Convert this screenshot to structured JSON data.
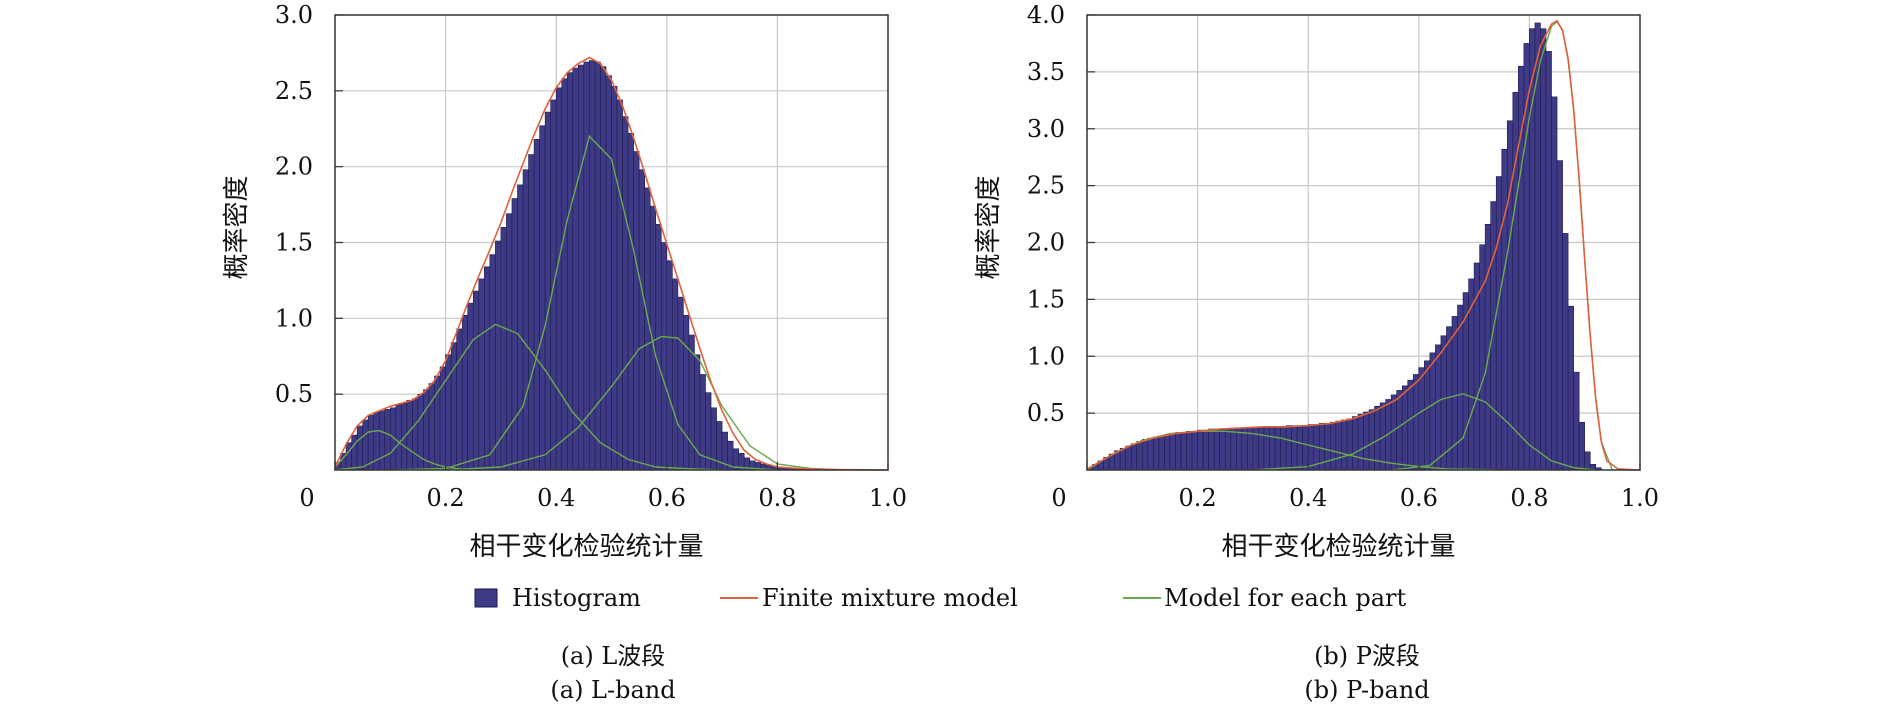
{
  "colors": {
    "histogram_fill": "#3f3a85",
    "histogram_edge": "#1e1b4d",
    "mixture_line": "#e0623a",
    "component_line": "#6aa84f",
    "grid": "#c8c8c8",
    "axis": "#333333"
  },
  "legend": {
    "histogram": "Histogram",
    "mixture": "Finite mixture model",
    "components": "Model for each part"
  },
  "chart_data": [
    {
      "type": "histogram",
      "caption_cn": "(a) L波段",
      "caption_en": "(a) L-band",
      "xlabel": "相干变化检验统计量",
      "ylabel": "概率密度",
      "xlim": [
        0,
        1.0
      ],
      "ylim": [
        0,
        3.0
      ],
      "xticks": [
        {
          "v": 0,
          "label": "0"
        },
        {
          "v": 0.2,
          "label": "0.2"
        },
        {
          "v": 0.4,
          "label": "0.4"
        },
        {
          "v": 0.6,
          "label": "0.6"
        },
        {
          "v": 0.8,
          "label": "0.8"
        },
        {
          "v": 1.0,
          "label": "1.0"
        }
      ],
      "yticks": [
        {
          "v": 0.5,
          "label": "0.5"
        },
        {
          "v": 1.0,
          "label": "1.0"
        },
        {
          "v": 1.5,
          "label": "1.5"
        },
        {
          "v": 2.0,
          "label": "2.0"
        },
        {
          "v": 2.5,
          "label": "2.5"
        },
        {
          "v": 3.0,
          "label": "3.0"
        }
      ],
      "bin_width": 0.01,
      "bins": [
        0.0,
        0.01,
        0.02,
        0.03,
        0.04,
        0.05,
        0.06,
        0.07,
        0.08,
        0.09,
        0.1,
        0.11,
        0.12,
        0.13,
        0.14,
        0.15,
        0.16,
        0.17,
        0.18,
        0.19,
        0.2,
        0.21,
        0.22,
        0.23,
        0.24,
        0.25,
        0.26,
        0.27,
        0.28,
        0.29,
        0.3,
        0.31,
        0.32,
        0.33,
        0.34,
        0.35,
        0.36,
        0.37,
        0.38,
        0.39,
        0.4,
        0.41,
        0.42,
        0.43,
        0.44,
        0.45,
        0.46,
        0.47,
        0.48,
        0.49,
        0.5,
        0.51,
        0.52,
        0.53,
        0.54,
        0.55,
        0.56,
        0.57,
        0.58,
        0.59,
        0.6,
        0.61,
        0.62,
        0.63,
        0.64,
        0.65,
        0.66,
        0.67,
        0.68,
        0.69,
        0.7,
        0.71,
        0.72,
        0.73,
        0.74,
        0.75,
        0.76,
        0.77,
        0.78,
        0.79,
        0.8,
        0.81,
        0.82,
        0.83,
        0.84,
        0.85,
        0.86,
        0.87,
        0.88,
        0.89,
        0.9,
        0.91,
        0.92,
        0.93,
        0.94,
        0.95,
        0.96,
        0.97,
        0.98,
        0.99
      ],
      "histogram": [
        0.05,
        0.11,
        0.18,
        0.23,
        0.29,
        0.33,
        0.36,
        0.38,
        0.39,
        0.4,
        0.41,
        0.43,
        0.44,
        0.46,
        0.47,
        0.5,
        0.53,
        0.57,
        0.62,
        0.68,
        0.76,
        0.84,
        0.93,
        1.02,
        1.1,
        1.18,
        1.26,
        1.34,
        1.42,
        1.51,
        1.6,
        1.69,
        1.79,
        1.88,
        1.98,
        2.08,
        2.18,
        2.27,
        2.36,
        2.44,
        2.52,
        2.58,
        2.62,
        2.65,
        2.67,
        2.69,
        2.7,
        2.69,
        2.66,
        2.6,
        2.53,
        2.44,
        2.33,
        2.22,
        2.1,
        1.98,
        1.86,
        1.74,
        1.62,
        1.5,
        1.38,
        1.26,
        1.14,
        1.02,
        0.89,
        0.76,
        0.63,
        0.51,
        0.41,
        0.32,
        0.25,
        0.19,
        0.14,
        0.11,
        0.08,
        0.06,
        0.05,
        0.04,
        0.03,
        0.025,
        0.02,
        0.015,
        0.012,
        0.01,
        0.01,
        0.01,
        0.008,
        0.006,
        0.005,
        0.004,
        0.003,
        0.003,
        0.002,
        0.002,
        0.002,
        0.002,
        0.001,
        0.001,
        0.001,
        0.001
      ],
      "mixture_curve": {
        "x": [
          0.0,
          0.02,
          0.04,
          0.06,
          0.08,
          0.1,
          0.12,
          0.14,
          0.16,
          0.18,
          0.2,
          0.22,
          0.24,
          0.26,
          0.28,
          0.3,
          0.32,
          0.34,
          0.36,
          0.38,
          0.4,
          0.42,
          0.44,
          0.46,
          0.48,
          0.5,
          0.52,
          0.54,
          0.56,
          0.58,
          0.6,
          0.62,
          0.64,
          0.66,
          0.68,
          0.7,
          0.72,
          0.74,
          0.76,
          0.78,
          0.8,
          0.84,
          0.88,
          0.92,
          0.96,
          1.0
        ],
        "y": [
          0.02,
          0.17,
          0.29,
          0.36,
          0.39,
          0.42,
          0.44,
          0.46,
          0.51,
          0.59,
          0.72,
          0.91,
          1.1,
          1.28,
          1.45,
          1.63,
          1.83,
          2.02,
          2.21,
          2.38,
          2.52,
          2.62,
          2.68,
          2.72,
          2.68,
          2.57,
          2.4,
          2.19,
          1.96,
          1.72,
          1.49,
          1.26,
          1.03,
          0.8,
          0.58,
          0.39,
          0.24,
          0.13,
          0.07,
          0.04,
          0.02,
          0.01,
          0.005,
          0.002,
          0.001,
          0.0
        ]
      },
      "components": [
        {
          "x": [
            0.0,
            0.02,
            0.04,
            0.06,
            0.08,
            0.1,
            0.12,
            0.14,
            0.16,
            0.18,
            0.2,
            0.22,
            0.24
          ],
          "y": [
            0.02,
            0.1,
            0.19,
            0.25,
            0.26,
            0.23,
            0.17,
            0.12,
            0.07,
            0.04,
            0.02,
            0.01,
            0.0
          ]
        },
        {
          "x": [
            0.0,
            0.05,
            0.1,
            0.15,
            0.2,
            0.25,
            0.29,
            0.33,
            0.38,
            0.43,
            0.48,
            0.53,
            0.58,
            0.63,
            0.7
          ],
          "y": [
            0.0,
            0.02,
            0.11,
            0.32,
            0.59,
            0.86,
            0.96,
            0.9,
            0.66,
            0.38,
            0.18,
            0.07,
            0.02,
            0.01,
            0.0
          ]
        },
        {
          "x": [
            0.1,
            0.2,
            0.28,
            0.34,
            0.38,
            0.42,
            0.46,
            0.5,
            0.54,
            0.58,
            0.62,
            0.66,
            0.72,
            0.8
          ],
          "y": [
            0.0,
            0.01,
            0.1,
            0.42,
            0.95,
            1.65,
            2.2,
            2.05,
            1.45,
            0.75,
            0.3,
            0.1,
            0.02,
            0.0
          ]
        },
        {
          "x": [
            0.2,
            0.3,
            0.38,
            0.44,
            0.5,
            0.55,
            0.59,
            0.62,
            0.66,
            0.7,
            0.75,
            0.8,
            0.86,
            0.92
          ],
          "y": [
            0.0,
            0.02,
            0.1,
            0.28,
            0.55,
            0.8,
            0.88,
            0.87,
            0.72,
            0.42,
            0.16,
            0.04,
            0.01,
            0.0
          ]
        }
      ]
    },
    {
      "type": "histogram",
      "caption_cn": "(b) P波段",
      "caption_en": "(b) P-band",
      "xlabel": "相干变化检验统计量",
      "ylabel": "概率密度",
      "xlim": [
        0,
        1.0
      ],
      "ylim": [
        0,
        4.0
      ],
      "xticks": [
        {
          "v": 0,
          "label": "0"
        },
        {
          "v": 0.2,
          "label": "0.2"
        },
        {
          "v": 0.4,
          "label": "0.4"
        },
        {
          "v": 0.6,
          "label": "0.6"
        },
        {
          "v": 0.8,
          "label": "0.8"
        },
        {
          "v": 1.0,
          "label": "1.0"
        }
      ],
      "yticks": [
        {
          "v": 0.5,
          "label": "0.5"
        },
        {
          "v": 1.0,
          "label": "1.0"
        },
        {
          "v": 1.5,
          "label": "1.5"
        },
        {
          "v": 2.0,
          "label": "2.0"
        },
        {
          "v": 2.5,
          "label": "2.5"
        },
        {
          "v": 3.0,
          "label": "3.0"
        },
        {
          "v": 3.5,
          "label": "3.5"
        },
        {
          "v": 4.0,
          "label": "4.0"
        }
      ],
      "bin_width": 0.01,
      "bins": [
        0.0,
        0.01,
        0.02,
        0.03,
        0.04,
        0.05,
        0.06,
        0.07,
        0.08,
        0.09,
        0.1,
        0.11,
        0.12,
        0.13,
        0.14,
        0.15,
        0.16,
        0.17,
        0.18,
        0.19,
        0.2,
        0.21,
        0.22,
        0.23,
        0.24,
        0.25,
        0.26,
        0.27,
        0.28,
        0.29,
        0.3,
        0.31,
        0.32,
        0.33,
        0.34,
        0.35,
        0.36,
        0.37,
        0.38,
        0.39,
        0.4,
        0.41,
        0.42,
        0.43,
        0.44,
        0.45,
        0.46,
        0.47,
        0.48,
        0.49,
        0.5,
        0.51,
        0.52,
        0.53,
        0.54,
        0.55,
        0.56,
        0.57,
        0.58,
        0.59,
        0.6,
        0.61,
        0.62,
        0.63,
        0.64,
        0.65,
        0.66,
        0.67,
        0.68,
        0.69,
        0.7,
        0.71,
        0.72,
        0.73,
        0.74,
        0.75,
        0.76,
        0.77,
        0.78,
        0.79,
        0.8,
        0.81,
        0.82,
        0.83,
        0.84,
        0.85,
        0.86,
        0.87,
        0.88,
        0.89,
        0.9,
        0.91,
        0.92,
        0.93,
        0.94,
        0.95,
        0.96,
        0.97,
        0.98,
        0.99
      ],
      "histogram": [
        0.02,
        0.05,
        0.08,
        0.11,
        0.14,
        0.17,
        0.19,
        0.21,
        0.23,
        0.25,
        0.27,
        0.28,
        0.29,
        0.3,
        0.31,
        0.32,
        0.33,
        0.33,
        0.34,
        0.34,
        0.35,
        0.35,
        0.36,
        0.36,
        0.36,
        0.36,
        0.37,
        0.37,
        0.37,
        0.37,
        0.38,
        0.38,
        0.38,
        0.38,
        0.38,
        0.38,
        0.39,
        0.39,
        0.39,
        0.39,
        0.4,
        0.4,
        0.41,
        0.41,
        0.42,
        0.43,
        0.44,
        0.45,
        0.47,
        0.49,
        0.51,
        0.53,
        0.56,
        0.59,
        0.62,
        0.66,
        0.7,
        0.74,
        0.79,
        0.84,
        0.9,
        0.96,
        1.03,
        1.1,
        1.18,
        1.26,
        1.35,
        1.45,
        1.56,
        1.68,
        1.82,
        1.98,
        2.16,
        2.36,
        2.58,
        2.82,
        3.07,
        3.32,
        3.55,
        3.75,
        3.88,
        3.93,
        3.88,
        3.68,
        3.28,
        2.72,
        2.08,
        1.44,
        0.86,
        0.42,
        0.16,
        0.05,
        0.02,
        0.0,
        0.0,
        0.0,
        0.0,
        0.0,
        0.0,
        0.0
      ],
      "mixture_curve": {
        "x": [
          0.0,
          0.04,
          0.08,
          0.12,
          0.16,
          0.2,
          0.24,
          0.28,
          0.32,
          0.36,
          0.4,
          0.44,
          0.48,
          0.52,
          0.56,
          0.6,
          0.64,
          0.68,
          0.72,
          0.74,
          0.76,
          0.78,
          0.8,
          0.82,
          0.84,
          0.85,
          0.86,
          0.87,
          0.88,
          0.89,
          0.9,
          0.91,
          0.92,
          0.93,
          0.94,
          0.96,
          1.0
        ],
        "y": [
          0.01,
          0.12,
          0.22,
          0.28,
          0.32,
          0.34,
          0.36,
          0.37,
          0.38,
          0.38,
          0.39,
          0.41,
          0.45,
          0.52,
          0.62,
          0.79,
          1.03,
          1.3,
          1.66,
          1.95,
          2.33,
          2.84,
          3.34,
          3.73,
          3.92,
          3.95,
          3.86,
          3.62,
          3.18,
          2.55,
          1.85,
          1.18,
          0.62,
          0.25,
          0.08,
          0.01,
          0.0
        ]
      },
      "components": [
        {
          "x": [
            0.0,
            0.05,
            0.1,
            0.15,
            0.2,
            0.25,
            0.3,
            0.35,
            0.4,
            0.45,
            0.5,
            0.55,
            0.6,
            0.65,
            0.7,
            0.75
          ],
          "y": [
            0.0,
            0.15,
            0.26,
            0.32,
            0.34,
            0.34,
            0.32,
            0.28,
            0.22,
            0.16,
            0.1,
            0.06,
            0.03,
            0.01,
            0.005,
            0.0
          ]
        },
        {
          "x": [
            0.3,
            0.4,
            0.48,
            0.54,
            0.6,
            0.64,
            0.68,
            0.72,
            0.76,
            0.8,
            0.84,
            0.88,
            0.92
          ],
          "y": [
            0.0,
            0.03,
            0.14,
            0.3,
            0.5,
            0.62,
            0.67,
            0.6,
            0.42,
            0.22,
            0.08,
            0.02,
            0.0
          ]
        },
        {
          "x": [
            0.55,
            0.62,
            0.68,
            0.72,
            0.76,
            0.8,
            0.82,
            0.84,
            0.85,
            0.86,
            0.87,
            0.88,
            0.89,
            0.9,
            0.91,
            0.92,
            0.93,
            0.95
          ],
          "y": [
            0.0,
            0.04,
            0.28,
            0.85,
            1.9,
            3.1,
            3.6,
            3.9,
            3.94,
            3.87,
            3.6,
            3.17,
            2.55,
            1.85,
            1.18,
            0.62,
            0.25,
            0.0
          ]
        }
      ]
    }
  ]
}
